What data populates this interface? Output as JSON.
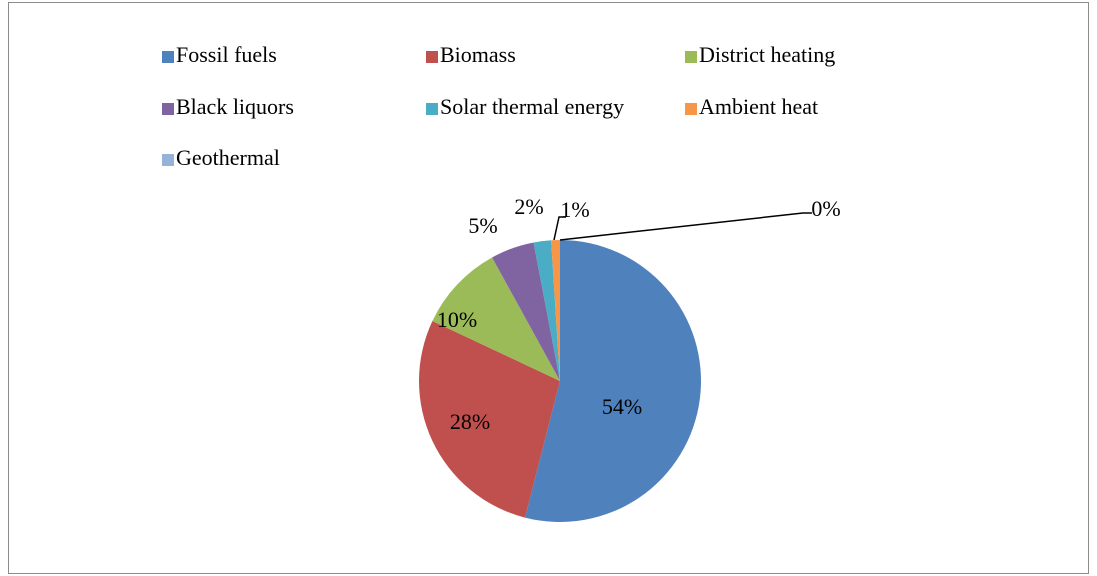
{
  "chart_data": {
    "type": "pie",
    "categories": [
      "Fossil fuels",
      "Biomass",
      "District heating",
      "Black liquors",
      "Solar thermal energy",
      "Ambient heat",
      "Geothermal"
    ],
    "values": [
      54,
      28,
      10,
      5,
      2,
      1,
      0
    ],
    "value_labels": [
      "54%",
      "28%",
      "10%",
      "5%",
      "2%",
      "1%",
      "0%"
    ],
    "colors": [
      "#4f81bd",
      "#c0504d",
      "#9bbb59",
      "#8064a2",
      "#4bacc6",
      "#f79646",
      "#95b3d7"
    ],
    "legend": "top"
  }
}
